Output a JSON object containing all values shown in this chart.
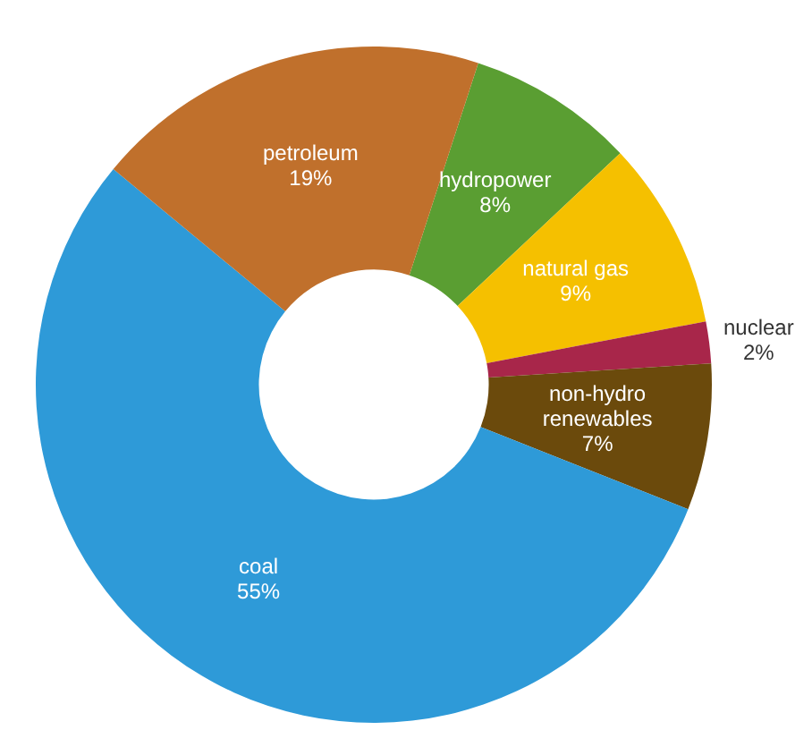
{
  "chart_data": {
    "type": "donut",
    "categories": [
      "hydropower",
      "natural gas",
      "nuclear",
      "non-hydro renewables",
      "coal",
      "petroleum"
    ],
    "values": [
      8,
      9,
      2,
      7,
      55,
      19
    ],
    "colors": [
      "#5a9e32",
      "#f5c000",
      "#a8264a",
      "#6b4a0c",
      "#2e9ad8",
      "#c0702c"
    ],
    "value_labels": [
      "8%",
      "9%",
      "2%",
      "7%",
      "55%",
      "19%"
    ],
    "legend": false
  }
}
